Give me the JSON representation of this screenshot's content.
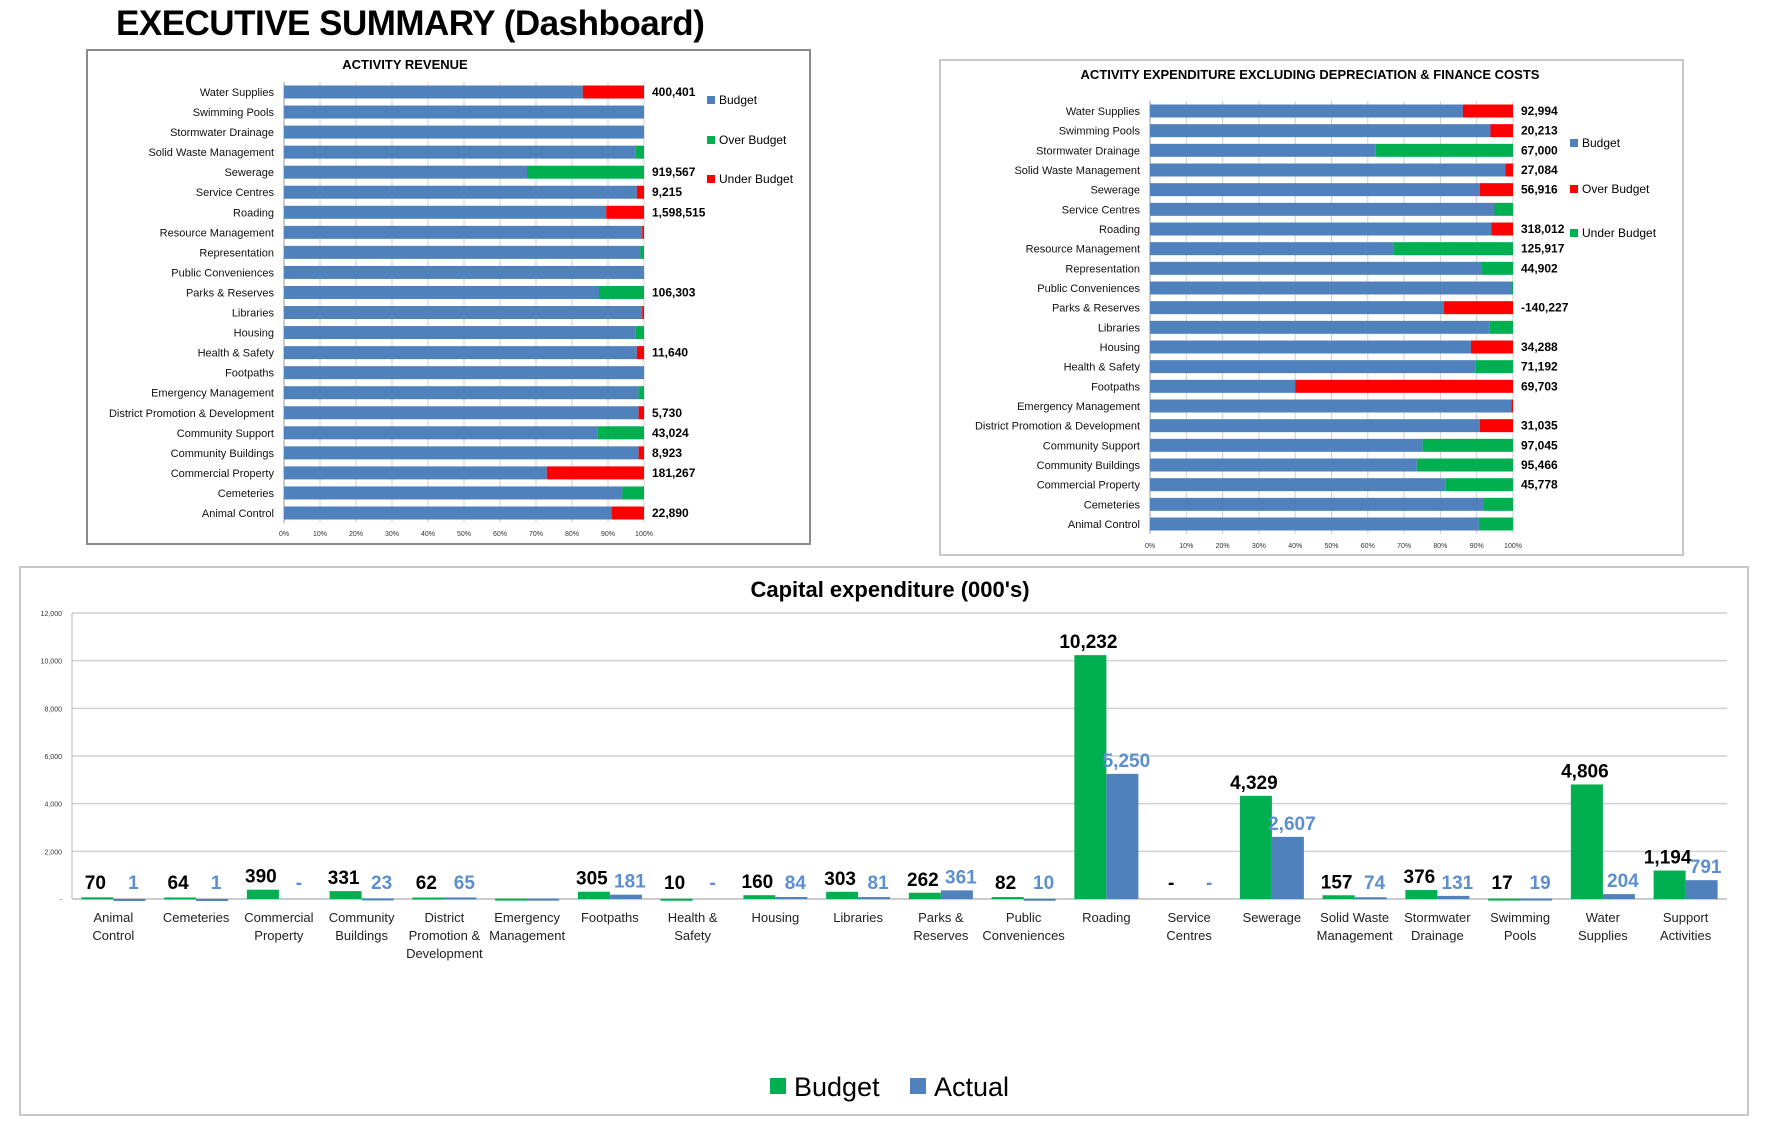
{
  "page_title": "EXECUTIVE SUMMARY (Dashboard)",
  "colors": {
    "budget": "#4f81bd",
    "green": "#00b050",
    "red": "#ff0000",
    "actual_label": "#5b8fd0",
    "grid": "#d0d0d0"
  },
  "chart_data": [
    {
      "type": "bar",
      "orientation": "horizontal-stacked-100",
      "title": "ACTIVITY REVENUE",
      "xlim": [
        0,
        100
      ],
      "x_ticks": [
        "0%",
        "10%",
        "20%",
        "30%",
        "40%",
        "50%",
        "60%",
        "70%",
        "80%",
        "90%",
        "100%"
      ],
      "legend": [
        {
          "label": "Budget",
          "color": "#4f81bd"
        },
        {
          "label": "Over Budget",
          "color": "#00b050"
        },
        {
          "label": "Under Budget",
          "color": "#ff0000"
        }
      ],
      "legend_position": "right",
      "rows": [
        {
          "category": "Water Supplies",
          "budget_pct": 83,
          "variance_pct": 17,
          "variance_type": "Under Budget",
          "label": "400,401"
        },
        {
          "category": "Swimming Pools",
          "budget_pct": 100,
          "variance_pct": 0,
          "variance_type": "",
          "label": ""
        },
        {
          "category": "Stormwater Drainage",
          "budget_pct": 100,
          "variance_pct": 0,
          "variance_type": "",
          "label": ""
        },
        {
          "category": "Solid Waste Management",
          "budget_pct": 97.7,
          "variance_pct": 2.3,
          "variance_type": "Over Budget",
          "label": ""
        },
        {
          "category": "Sewerage",
          "budget_pct": 67.5,
          "variance_pct": 32.5,
          "variance_type": "Over Budget",
          "label": "919,567"
        },
        {
          "category": "Service Centres",
          "budget_pct": 98,
          "variance_pct": 2,
          "variance_type": "Under Budget",
          "label": "9,215"
        },
        {
          "category": "Roading",
          "budget_pct": 89.5,
          "variance_pct": 10.5,
          "variance_type": "Under Budget",
          "label": "1,598,515"
        },
        {
          "category": "Resource Management",
          "budget_pct": 99.5,
          "variance_pct": 0.5,
          "variance_type": "Under Budget",
          "label": ""
        },
        {
          "category": "Representation",
          "budget_pct": 99,
          "variance_pct": 1,
          "variance_type": "Over Budget",
          "label": ""
        },
        {
          "category": "Public Conveniences",
          "budget_pct": 100,
          "variance_pct": 0,
          "variance_type": "",
          "label": ""
        },
        {
          "category": "Parks & Reserves",
          "budget_pct": 87.5,
          "variance_pct": 12.5,
          "variance_type": "Over Budget",
          "label": "106,303"
        },
        {
          "category": "Libraries",
          "budget_pct": 99.5,
          "variance_pct": 0.5,
          "variance_type": "Under Budget",
          "label": ""
        },
        {
          "category": "Housing",
          "budget_pct": 97.7,
          "variance_pct": 2.3,
          "variance_type": "Over Budget",
          "label": ""
        },
        {
          "category": "Health & Safety",
          "budget_pct": 98,
          "variance_pct": 2,
          "variance_type": "Under Budget",
          "label": "11,640"
        },
        {
          "category": "Footpaths",
          "budget_pct": 100,
          "variance_pct": 0,
          "variance_type": "",
          "label": ""
        },
        {
          "category": "Emergency Management",
          "budget_pct": 98.5,
          "variance_pct": 1.5,
          "variance_type": "Over Budget",
          "label": ""
        },
        {
          "category": "District Promotion & Development",
          "budget_pct": 98.5,
          "variance_pct": 1.5,
          "variance_type": "Under Budget",
          "label": "5,730"
        },
        {
          "category": "Community Support",
          "budget_pct": 87,
          "variance_pct": 13,
          "variance_type": "Over Budget",
          "label": "43,024"
        },
        {
          "category": "Community Buildings",
          "budget_pct": 98.5,
          "variance_pct": 1.5,
          "variance_type": "Under Budget",
          "label": "8,923"
        },
        {
          "category": "Commercial Property",
          "budget_pct": 73,
          "variance_pct": 27,
          "variance_type": "Under Budget",
          "label": "181,267"
        },
        {
          "category": "Cemeteries",
          "budget_pct": 94,
          "variance_pct": 6,
          "variance_type": "Over Budget",
          "label": ""
        },
        {
          "category": "Animal Control",
          "budget_pct": 91,
          "variance_pct": 9,
          "variance_type": "Under Budget",
          "label": "22,890"
        }
      ]
    },
    {
      "type": "bar",
      "orientation": "horizontal-stacked-100",
      "title": "ACTIVITY EXPENDITURE EXCLUDING DEPRECIATION & FINANCE COSTS",
      "xlim": [
        0,
        100
      ],
      "x_ticks": [
        "0%",
        "10%",
        "20%",
        "30%",
        "40%",
        "50%",
        "60%",
        "70%",
        "80%",
        "90%",
        "100%"
      ],
      "legend": [
        {
          "label": "Budget",
          "color": "#4f81bd"
        },
        {
          "label": "Over Budget",
          "color": "#ff0000"
        },
        {
          "label": "Under Budget",
          "color": "#00b050"
        }
      ],
      "legend_position": "right",
      "rows": [
        {
          "category": "Water Supplies",
          "budget_pct": 86.2,
          "variance_pct": 13.8,
          "variance_type": "Over Budget",
          "label": "92,994"
        },
        {
          "category": "Swimming Pools",
          "budget_pct": 93.8,
          "variance_pct": 6.2,
          "variance_type": "Over Budget",
          "label": "20,213"
        },
        {
          "category": "Stormwater Drainage",
          "budget_pct": 62.2,
          "variance_pct": 37.8,
          "variance_type": "Under Budget",
          "label": "67,000"
        },
        {
          "category": "Solid Waste Management",
          "budget_pct": 97.9,
          "variance_pct": 2.1,
          "variance_type": "Over Budget",
          "label": "27,084"
        },
        {
          "category": "Sewerage",
          "budget_pct": 90.9,
          "variance_pct": 9.1,
          "variance_type": "Over Budget",
          "label": "56,916"
        },
        {
          "category": "Service Centres",
          "budget_pct": 94.9,
          "variance_pct": 5.1,
          "variance_type": "Under Budget",
          "label": ""
        },
        {
          "category": "Roading",
          "budget_pct": 94,
          "variance_pct": 6,
          "variance_type": "Over Budget",
          "label": "318,012"
        },
        {
          "category": "Resource Management",
          "budget_pct": 67.2,
          "variance_pct": 32.8,
          "variance_type": "Under Budget",
          "label": "125,917"
        },
        {
          "category": "Representation",
          "budget_pct": 91.3,
          "variance_pct": 8.7,
          "variance_type": "Under Budget",
          "label": "44,902"
        },
        {
          "category": "Public Conveniences",
          "budget_pct": 99.6,
          "variance_pct": 0.4,
          "variance_type": "Under Budget",
          "label": ""
        },
        {
          "category": "Parks & Reserves",
          "budget_pct": 81,
          "variance_pct": 19,
          "variance_type": "Over Budget",
          "label": "-140,227"
        },
        {
          "category": "Libraries",
          "budget_pct": 93.6,
          "variance_pct": 6.4,
          "variance_type": "Under Budget",
          "label": ""
        },
        {
          "category": "Housing",
          "budget_pct": 88.4,
          "variance_pct": 11.6,
          "variance_type": "Over Budget",
          "label": "34,288"
        },
        {
          "category": "Health & Safety",
          "budget_pct": 89.6,
          "variance_pct": 10.4,
          "variance_type": "Under Budget",
          "label": "71,192"
        },
        {
          "category": "Footpaths",
          "budget_pct": 40,
          "variance_pct": 60,
          "variance_type": "Over Budget",
          "label": "69,703"
        },
        {
          "category": "Emergency Management",
          "budget_pct": 99.6,
          "variance_pct": 0.4,
          "variance_type": "Over Budget",
          "label": ""
        },
        {
          "category": "District Promotion & Development",
          "budget_pct": 90.9,
          "variance_pct": 9.1,
          "variance_type": "Over Budget",
          "label": "31,035"
        },
        {
          "category": "Community Support",
          "budget_pct": 75.1,
          "variance_pct": 24.9,
          "variance_type": "Under Budget",
          "label": "97,045"
        },
        {
          "category": "Community Buildings",
          "budget_pct": 73.5,
          "variance_pct": 26.5,
          "variance_type": "Under Budget",
          "label": "95,466"
        },
        {
          "category": "Commercial Property",
          "budget_pct": 81.5,
          "variance_pct": 18.5,
          "variance_type": "Under Budget",
          "label": "45,778"
        },
        {
          "category": "Cemeteries",
          "budget_pct": 92,
          "variance_pct": 8,
          "variance_type": "Under Budget",
          "label": ""
        },
        {
          "category": "Animal Control",
          "budget_pct": 90.6,
          "variance_pct": 9.4,
          "variance_type": "Under Budget",
          "label": ""
        }
      ]
    },
    {
      "type": "bar",
      "title": "Capital expenditure (000's)",
      "ylim": [
        0,
        12000
      ],
      "y_ticks": [
        {
          "value": 0,
          "label": "-"
        },
        {
          "value": 2000,
          "label": "2,000"
        },
        {
          "value": 4000,
          "label": "4,000"
        },
        {
          "value": 6000,
          "label": "6,000"
        },
        {
          "value": 8000,
          "label": "8,000"
        },
        {
          "value": 10000,
          "label": "10,000"
        },
        {
          "value": 12000,
          "label": "12,000"
        }
      ],
      "grid": true,
      "legend_position": "bottom",
      "series": [
        {
          "name": "Budget",
          "color": "#00b050",
          "label_color": "#000000",
          "values": [
            70,
            64,
            390,
            331,
            62,
            15,
            305,
            10,
            160,
            303,
            262,
            82,
            10232,
            0,
            4329,
            157,
            376,
            17,
            4806,
            1194
          ],
          "labels": [
            "70",
            "64",
            "390",
            "331",
            "62",
            "",
            "305",
            "10",
            "160",
            "303",
            "262",
            "82",
            "10,232",
            "-",
            "4,329",
            "157",
            "376",
            "17",
            "4,806",
            "1,194"
          ]
        },
        {
          "name": "Actual",
          "color": "#4f81bd",
          "label_color": "#5b8fd0",
          "values": [
            1,
            1,
            0,
            23,
            65,
            15,
            181,
            0,
            84,
            81,
            361,
            10,
            5250,
            0,
            2607,
            74,
            131,
            19,
            204,
            791
          ],
          "labels": [
            "1",
            "1",
            "-",
            "23",
            "65",
            "",
            "181",
            "-",
            "84",
            "81",
            "361",
            "10",
            "5,250",
            "-",
            "2,607",
            "74",
            "131",
            "19",
            "204",
            "791"
          ]
        }
      ],
      "categories": [
        [
          "Animal",
          "Control"
        ],
        [
          "Cemeteries"
        ],
        [
          "Commercial",
          "Property"
        ],
        [
          "Community",
          "Buildings"
        ],
        [
          "District",
          "Promotion &",
          "Development"
        ],
        [
          "Emergency",
          "Management"
        ],
        [
          "Footpaths"
        ],
        [
          "Health &",
          "Safety"
        ],
        [
          "Housing"
        ],
        [
          "Libraries"
        ],
        [
          "Parks &",
          "Reserves"
        ],
        [
          "Public",
          "Conveniences"
        ],
        [
          "Roading"
        ],
        [
          "Service",
          "Centres"
        ],
        [
          "Sewerage"
        ],
        [
          "Solid Waste",
          "Management"
        ],
        [
          "Stormwater",
          "Drainage"
        ],
        [
          "Swimming",
          "Pools"
        ],
        [
          "Water",
          "Supplies"
        ],
        [
          "Support",
          "Activities"
        ]
      ]
    }
  ]
}
